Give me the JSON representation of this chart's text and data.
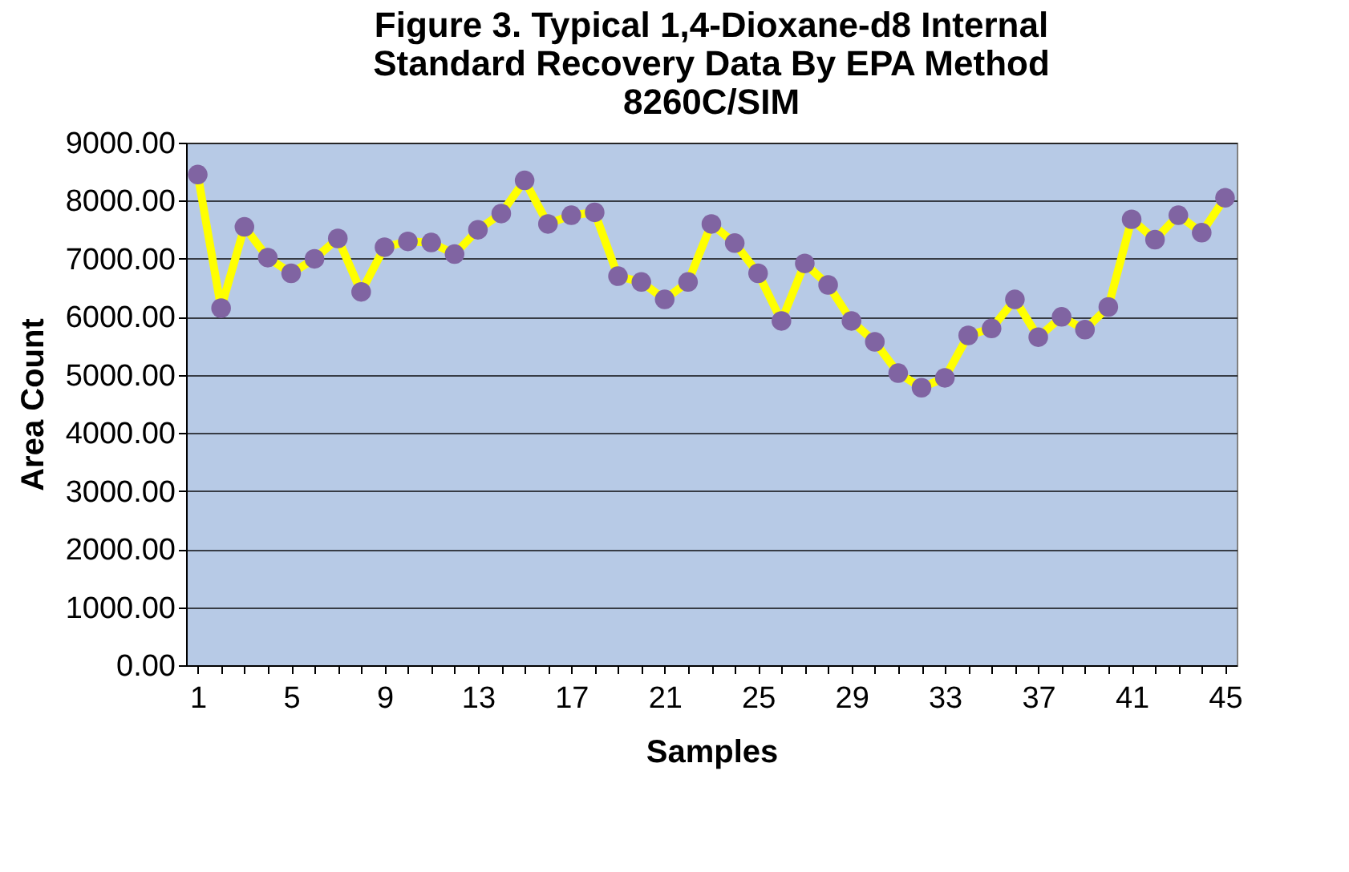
{
  "chart_data": {
    "type": "line",
    "title": "Figure 3. Typical 1,4-Dioxane-d8 Internal Standard Recovery Data By EPA Method 8260C/SIM",
    "xlabel": "Samples",
    "ylabel": "Area Count",
    "categories": [
      "1",
      null,
      null,
      null,
      "5",
      null,
      null,
      null,
      "9",
      null,
      null,
      null,
      "13",
      null,
      null,
      null,
      "17",
      null,
      null,
      null,
      "21",
      null,
      null,
      null,
      "25",
      null,
      null,
      null,
      "29",
      null,
      null,
      null,
      "33",
      null,
      null,
      null,
      "37",
      null,
      null,
      null,
      "41",
      null,
      null,
      null,
      "45"
    ],
    "series": [
      {
        "color": "#ffff00",
        "colors": [
          "#8064a2",
          "#8064a2",
          "#8064a2",
          "#8064a2",
          "#8064a2",
          "#8064a2",
          "#8064a2",
          "#8064a2",
          "#8064a2",
          "#8064a2",
          "#8064a2",
          "#8064a2",
          "#8064a2",
          "#8064a2",
          "#8064a2",
          "#8064a2",
          "#8064a2",
          "#8064a2",
          "#8064a2",
          "#8064a2",
          "#8064a2",
          "#8064a2",
          "#8064a2",
          "#8064a2",
          "#8064a2",
          "#8064a2",
          "#8064a2",
          "#8064a2",
          "#8064a2",
          "#8064a2",
          "#8064a2",
          "#8064a2",
          "#8064a2",
          "#8064a2",
          "#8064a2",
          "#8064a2",
          "#8064a2",
          "#8064a2",
          "#8064a2",
          "#8064a2",
          "#8064a2",
          "#8064a2",
          "#8064a2",
          "#8064a2",
          "#8064a2"
        ],
        "values": [
          8450,
          6150,
          7550,
          7020,
          6750,
          7000,
          7350,
          6430,
          7200,
          7300,
          7280,
          7080,
          7500,
          7780,
          8350,
          7600,
          7750,
          7800,
          6700,
          6600,
          6300,
          6600,
          7600,
          7270,
          6750,
          5930,
          6920,
          6550,
          5930,
          5570,
          5030,
          4780,
          4950,
          5680,
          5800,
          6300,
          5650,
          6000,
          5780,
          6170,
          7680,
          7330,
          7750,
          7450,
          8050
        ]
      }
    ],
    "ylim": [
      0,
      9000
    ],
    "yticks": [
      {
        "value": 0,
        "label": "0.00"
      },
      {
        "value": 1000,
        "label": "1000.00"
      },
      {
        "value": 2000,
        "label": "2000.00"
      },
      {
        "value": 3000,
        "label": "3000.00"
      },
      {
        "value": 4000,
        "label": "4000.00"
      },
      {
        "value": 5000,
        "label": "5000.00"
      },
      {
        "value": 6000,
        "label": "6000.00"
      },
      {
        "value": 7000,
        "label": "7000.00"
      },
      {
        "value": 8000,
        "label": "8000.00"
      },
      {
        "value": 9000,
        "label": "9000.00"
      }
    ],
    "grid": "y",
    "marker": "circle",
    "line_style": "solid"
  }
}
